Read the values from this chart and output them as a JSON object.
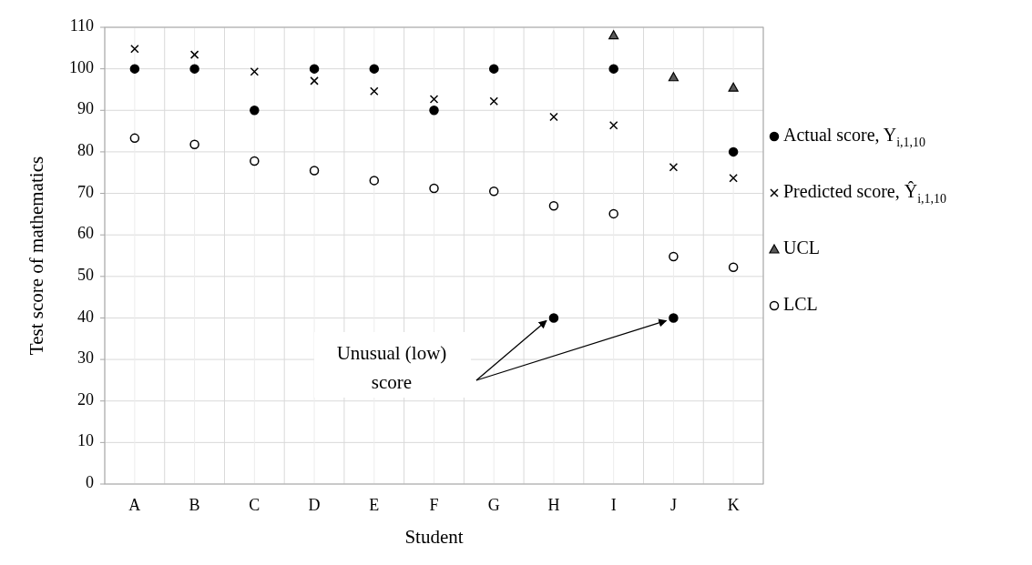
{
  "chart_data": {
    "type": "scatter",
    "xlabel": "Student",
    "ylabel": "Test score of mathematics",
    "categories": [
      "A",
      "B",
      "C",
      "D",
      "E",
      "F",
      "G",
      "H",
      "I",
      "J",
      "K"
    ],
    "series": [
      {
        "name": "Actual score, Y$_{i,1,10}$",
        "color": "#000000",
        "marker": "circle",
        "values": [
          100,
          100,
          90,
          100,
          100,
          90,
          100,
          40,
          100,
          40,
          80
        ]
      },
      {
        "name": "Predicted score, Ŷ$_{i,1,10}$",
        "color": "#000000",
        "marker": "cross",
        "values": [
          104.8,
          103.4,
          99.3,
          97.1,
          94.6,
          92.7,
          92.2,
          88.4,
          86.4,
          76.3,
          73.7
        ]
      },
      {
        "name": "UCL",
        "color": "#595959",
        "marker": "triangle",
        "values": [
          null,
          null,
          null,
          null,
          null,
          null,
          null,
          null,
          108.1,
          98.0,
          95.5
        ]
      },
      {
        "name": "LCL",
        "color": "#ffffff",
        "marker": "circle",
        "values": [
          83.3,
          81.8,
          77.8,
          75.5,
          73.1,
          71.2,
          70.5,
          67.0,
          65.1,
          54.8,
          52.2
        ]
      }
    ],
    "ylim": [
      0,
      110
    ],
    "yticks": [
      0,
      10,
      20,
      30,
      40,
      50,
      60,
      70,
      80,
      90,
      100,
      110
    ],
    "grid": true,
    "legend": "right",
    "annotations": [
      "Unusual (low) score"
    ]
  }
}
